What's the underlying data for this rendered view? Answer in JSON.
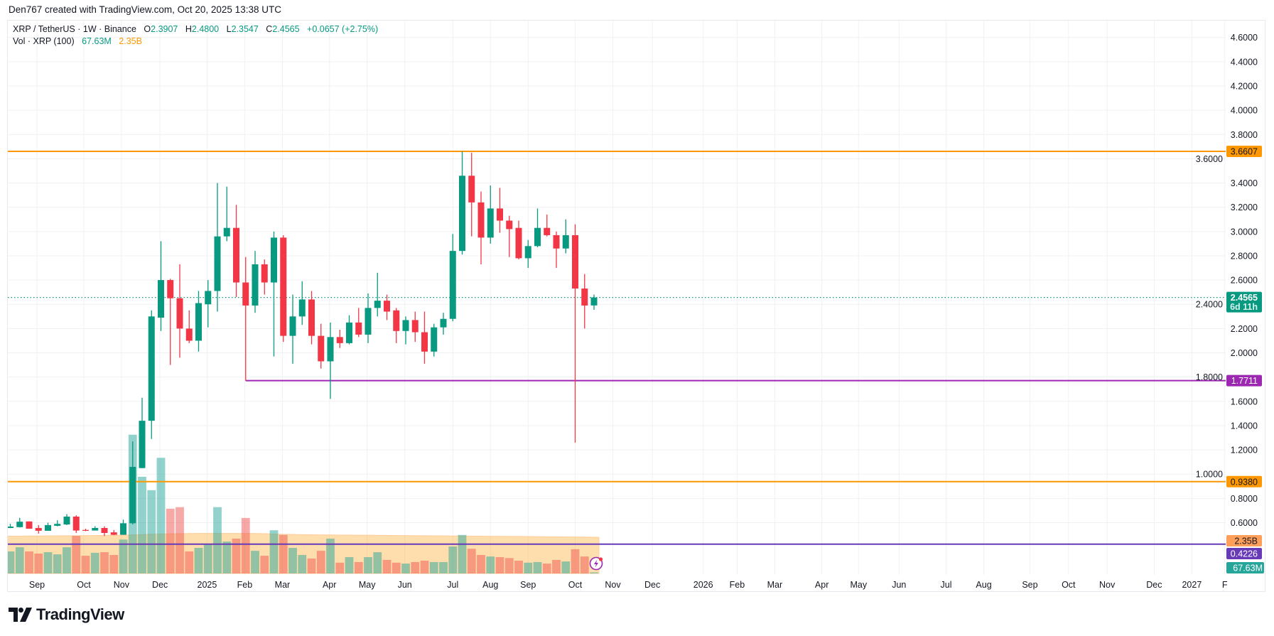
{
  "header": {
    "attribution": "Den767 created with TradingView.com, Oct 20, 2025 13:38 UTC"
  },
  "legend": {
    "symbol": "XRP / TetherUS · 1W · Binance",
    "o_label": "O",
    "o": "2.3907",
    "h_label": "H",
    "h": "2.4800",
    "l_label": "L",
    "l": "2.3547",
    "c_label": "C",
    "c": "2.4565",
    "change": "+0.0657 (+2.75%)",
    "vol_title": "Vol · XRP (100)",
    "vol_value": "67.63M",
    "vol_ma": "2.35B"
  },
  "logo": {
    "text": "TradingView"
  },
  "colors": {
    "up": "#089981",
    "down": "#f23645",
    "vol_up": "#26a69a",
    "vol_down": "#ef5350",
    "vol_ma": "#ff9800",
    "resistance": "#ff9800",
    "support_mid": "#9c27b0",
    "support_low": "#673ab7",
    "grid": "#f0f1f4",
    "text": "#131722"
  },
  "chart_data": {
    "type": "candlestick",
    "title": "XRP / TetherUS · 1W · Binance",
    "interval": "1W",
    "ylim": [
      0.4,
      4.7
    ],
    "y_ticks": [
      "4.6000",
      "4.4000",
      "4.2000",
      "4.0000",
      "3.8000",
      "3.6000",
      "3.4000",
      "3.2000",
      "3.0000",
      "2.8000",
      "2.6000",
      "2.4000",
      "2.2000",
      "2.0000",
      "1.8000",
      "1.6000",
      "1.4000",
      "1.2000",
      "1.0000",
      "0.8000",
      "0.6000"
    ],
    "x_ticks": [
      {
        "label": "Sep",
        "week": 2.83
      },
      {
        "label": "Oct",
        "week": 7.81
      },
      {
        "label": "Nov",
        "week": 11.8
      },
      {
        "label": "Dec",
        "week": 15.9
      },
      {
        "label": "2025",
        "week": 20.9
      },
      {
        "label": "Feb",
        "week": 24.9
      },
      {
        "label": "Mar",
        "week": 28.9
      },
      {
        "label": "Apr",
        "week": 33.9
      },
      {
        "label": "May",
        "week": 37.9
      },
      {
        "label": "Jun",
        "week": 41.9
      },
      {
        "label": "Jul",
        "week": 47.0
      },
      {
        "label": "Aug",
        "week": 51.0
      },
      {
        "label": "Sep",
        "week": 55.0
      },
      {
        "label": "Oct",
        "week": 60.0
      },
      {
        "label": "Nov",
        "week": 64.0
      },
      {
        "label": "Dec",
        "week": 68.2
      },
      {
        "label": "2026",
        "week": 73.6
      },
      {
        "label": "Feb",
        "week": 77.2
      },
      {
        "label": "Mar",
        "week": 81.2
      },
      {
        "label": "Apr",
        "week": 86.2
      },
      {
        "label": "May",
        "week": 90.1
      },
      {
        "label": "Jun",
        "week": 94.4
      },
      {
        "label": "Jul",
        "week": 99.4
      },
      {
        "label": "Aug",
        "week": 103.4
      },
      {
        "label": "Sep",
        "week": 108.3
      },
      {
        "label": "Oct",
        "week": 112.4
      },
      {
        "label": "Nov",
        "week": 116.5
      },
      {
        "label": "Dec",
        "week": 121.5
      },
      {
        "label": "2027",
        "week": 125.5
      },
      {
        "label": "F",
        "week": 129.0
      }
    ],
    "ohlc": [
      [
        0.556,
        0.59,
        0.555,
        0.568
      ],
      [
        0.563,
        0.64,
        0.56,
        0.608
      ],
      [
        0.61,
        0.61,
        0.55,
        0.55
      ],
      [
        0.556,
        0.58,
        0.51,
        0.533
      ],
      [
        0.533,
        0.6,
        0.533,
        0.58
      ],
      [
        0.574,
        0.62,
        0.57,
        0.59
      ],
      [
        0.585,
        0.67,
        0.58,
        0.65
      ],
      [
        0.65,
        0.66,
        0.515,
        0.535
      ],
      [
        0.54,
        0.55,
        0.53,
        0.535
      ],
      [
        0.535,
        0.57,
        0.535,
        0.556
      ],
      [
        0.556,
        0.57,
        0.49,
        0.515
      ],
      [
        0.52,
        0.54,
        0.497,
        0.5
      ],
      [
        0.5,
        0.625,
        0.5,
        0.595
      ],
      [
        0.595,
        1.27,
        0.585,
        1.06
      ],
      [
        1.05,
        1.63,
        1.05,
        1.44
      ],
      [
        1.44,
        2.35,
        1.29,
        2.3
      ],
      [
        2.29,
        2.92,
        2.18,
        2.6
      ],
      [
        2.6,
        2.61,
        1.9,
        2.45
      ],
      [
        2.45,
        2.73,
        1.96,
        2.2
      ],
      [
        2.2,
        2.35,
        2.08,
        2.1
      ],
      [
        2.1,
        2.51,
        2.01,
        2.41
      ],
      [
        2.4,
        2.6,
        2.21,
        2.51
      ],
      [
        2.51,
        3.4,
        2.34,
        2.96
      ],
      [
        2.96,
        3.37,
        2.92,
        3.03
      ],
      [
        3.03,
        3.22,
        2.46,
        2.58
      ],
      [
        2.58,
        2.79,
        1.77,
        2.39
      ],
      [
        2.39,
        2.84,
        2.33,
        2.73
      ],
      [
        2.73,
        2.77,
        2.48,
        2.58
      ],
      [
        2.58,
        3.0,
        1.97,
        2.95
      ],
      [
        2.95,
        2.97,
        2.09,
        2.14
      ],
      [
        2.14,
        2.48,
        1.91,
        2.3
      ],
      [
        2.3,
        2.59,
        2.23,
        2.44
      ],
      [
        2.44,
        2.51,
        2.07,
        2.14
      ],
      [
        2.14,
        2.24,
        1.87,
        1.93
      ],
      [
        1.93,
        2.25,
        1.62,
        2.13
      ],
      [
        2.13,
        2.19,
        2.04,
        2.08
      ],
      [
        2.08,
        2.31,
        2.07,
        2.25
      ],
      [
        2.25,
        2.37,
        2.13,
        2.15
      ],
      [
        2.15,
        2.49,
        2.08,
        2.37
      ],
      [
        2.37,
        2.66,
        2.3,
        2.43
      ],
      [
        2.43,
        2.48,
        2.27,
        2.34
      ],
      [
        2.35,
        2.37,
        2.08,
        2.18
      ],
      [
        2.18,
        2.3,
        2.07,
        2.27
      ],
      [
        2.27,
        2.34,
        2.09,
        2.17
      ],
      [
        2.17,
        2.34,
        1.91,
        2.01
      ],
      [
        2.01,
        2.24,
        1.97,
        2.21
      ],
      [
        2.21,
        2.33,
        2.15,
        2.28
      ],
      [
        2.28,
        2.98,
        2.26,
        2.84
      ],
      [
        2.84,
        3.66,
        2.81,
        3.46
      ],
      [
        3.46,
        3.65,
        2.96,
        3.24
      ],
      [
        3.24,
        3.33,
        2.73,
        2.95
      ],
      [
        2.95,
        3.38,
        2.9,
        3.19
      ],
      [
        3.19,
        3.36,
        2.99,
        3.09
      ],
      [
        3.09,
        3.13,
        2.79,
        3.02
      ],
      [
        3.03,
        3.09,
        2.77,
        2.78
      ],
      [
        2.78,
        2.93,
        2.7,
        2.88
      ],
      [
        2.88,
        3.19,
        2.87,
        3.03
      ],
      [
        3.03,
        3.14,
        2.96,
        2.97
      ],
      [
        2.97,
        3.0,
        2.7,
        2.86
      ],
      [
        2.86,
        3.1,
        2.82,
        2.97
      ],
      [
        2.97,
        3.06,
        1.26,
        2.53
      ],
      [
        2.53,
        2.65,
        2.2,
        2.39
      ],
      [
        2.3907,
        2.48,
        2.3547,
        2.4565
      ]
    ],
    "volume_b": [
      1.43,
      1.7,
      1.43,
      1.29,
      1.38,
      1.24,
      1.7,
      2.44,
      1.15,
      1.34,
      1.38,
      1.2,
      2.2,
      9.0,
      6.27,
      5.4,
      7.5,
      4.2,
      4.3,
      1.43,
      1.66,
      1.9,
      4.3,
      2.07,
      2.26,
      3.6,
      1.47,
      1.15,
      2.8,
      2.5,
      1.66,
      1.2,
      0.97,
      1.47,
      2.26,
      0.7,
      1.06,
      0.74,
      1.06,
      1.38,
      0.88,
      0.7,
      0.64,
      0.74,
      0.83,
      0.74,
      0.74,
      1.75,
      2.5,
      1.6,
      1.2,
      1.1,
      1.06,
      1.0,
      0.83,
      0.7,
      0.74,
      0.64,
      0.88,
      0.78,
      1.57,
      1.1,
      0.068
    ],
    "volume_ma_b": [
      2.42,
      2.42,
      2.43,
      2.43,
      2.44,
      2.44,
      2.45,
      2.45,
      2.46,
      2.46,
      2.47,
      2.47,
      2.48,
      2.5,
      2.52,
      2.54,
      2.56,
      2.57,
      2.58,
      2.59,
      2.6,
      2.6,
      2.6,
      2.6,
      2.6,
      2.6,
      2.59,
      2.58,
      2.56,
      2.54,
      2.53,
      2.52,
      2.51,
      2.5,
      2.5,
      2.49,
      2.49,
      2.48,
      2.48,
      2.47,
      2.47,
      2.46,
      2.46,
      2.45,
      2.45,
      2.44,
      2.44,
      2.43,
      2.43,
      2.42,
      2.42,
      2.41,
      2.41,
      2.4,
      2.4,
      2.39,
      2.39,
      2.38,
      2.38,
      2.37,
      2.37,
      2.36,
      2.35
    ],
    "hlines": [
      {
        "name": "resistance-line-high",
        "value": 3.6607,
        "label": "3.6607",
        "color": "#ff9800",
        "label_text_color": "#131722",
        "from_week": -1,
        "style": "solid"
      },
      {
        "name": "support-line-mid",
        "value": 1.7711,
        "label": "1.7711",
        "color": "#9c27b0",
        "label_text_color": "#ffffff",
        "from_week": 25,
        "style": "solid"
      },
      {
        "name": "support-line-orange",
        "value": 0.938,
        "label": "0.9380",
        "color": "#ff9800",
        "label_text_color": "#131722",
        "from_week": -1,
        "style": "solid"
      },
      {
        "name": "support-line-low",
        "value": 0.4226,
        "label": "0.4226",
        "color": "#673ab7",
        "label_text_color": "#ffffff",
        "from_week": -1,
        "style": "solid"
      }
    ],
    "last_price": {
      "value": 2.4565,
      "label": "2.4565",
      "countdown": "6d 11h",
      "color": "#089981"
    },
    "volume_badges": [
      {
        "name": "vol-ma-badge",
        "label": "2.35B",
        "color": "#ff9f59",
        "text_color": "#131722"
      },
      {
        "name": "vol-value-badge",
        "label": "67.63M",
        "color": "#26a69a",
        "text_color": "#ffffff"
      }
    ]
  }
}
